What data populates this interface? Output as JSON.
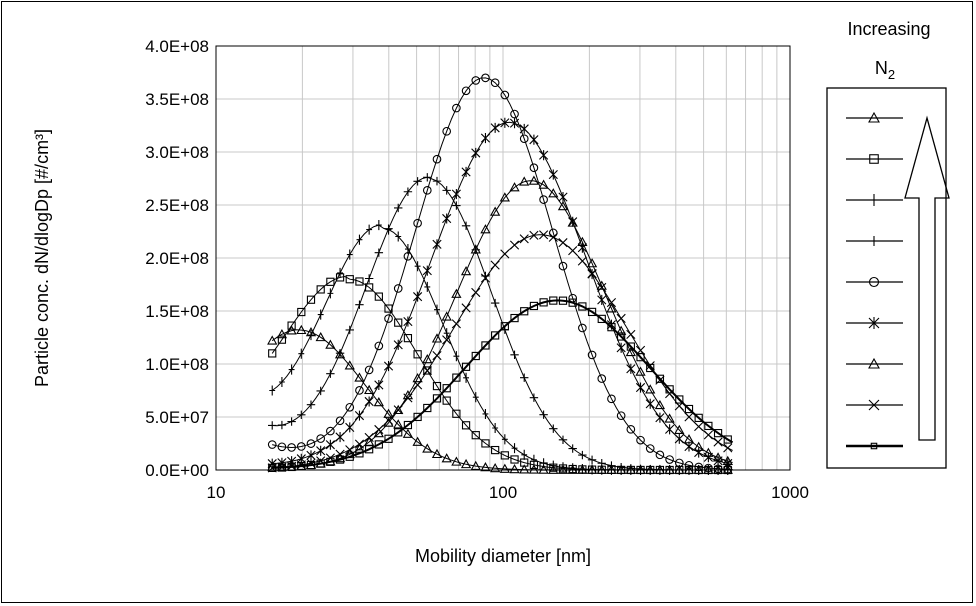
{
  "chart_data": {
    "type": "scatter",
    "xscale": "log",
    "xlim": [
      10,
      1000
    ],
    "ylim": [
      0,
      400000000
    ],
    "xlabel": "Mobility diameter [nm]",
    "ylabel": "Particle conc. dN/dlogDp [#/cm³]",
    "xticks": [
      "10",
      "100",
      "1000"
    ],
    "yticks": [
      "0.0E+00",
      "5.0E+07",
      "1.0E+08",
      "1.5E+08",
      "2.0E+08",
      "2.5E+08",
      "3.0E+08",
      "3.5E+08",
      "4.0E+08"
    ],
    "grid": true,
    "legend": {
      "title_line1": "Increasing",
      "title_line2": "N",
      "title_sub": "2",
      "placement": "right",
      "arrow": "up"
    },
    "x_range_points": [
      15.7,
      631
    ],
    "series": [
      {
        "marker": "triangle",
        "peak_x": 19.5,
        "peak_y": 132000000,
        "start_y": 122000000,
        "width": 0.23
      },
      {
        "marker": "square",
        "peak_x": 29,
        "peak_y": 180000000,
        "start_y": 110000000,
        "width": 0.24
      },
      {
        "marker": "vbar",
        "peak_x": 38,
        "peak_y": 228000000,
        "start_y": 75000000,
        "width": 0.21
      },
      {
        "marker": "plus",
        "peak_x": 55,
        "peak_y": 275000000,
        "start_y": 42000000,
        "width": 0.22
      },
      {
        "marker": "circle",
        "peak_x": 86,
        "peak_y": 370000000,
        "start_y": 24000000,
        "width": 0.24
      },
      {
        "marker": "asterisk",
        "peak_x": 105,
        "peak_y": 328000000,
        "start_y": 6000000,
        "width": 0.27
      },
      {
        "marker": "triangle",
        "peak_x": 125,
        "peak_y": 273000000,
        "start_y": 3000000,
        "width": 0.26
      },
      {
        "marker": "cross",
        "peak_x": 135,
        "peak_y": 222000000,
        "start_y": 2000000,
        "width": 0.3
      },
      {
        "marker": "square-bold",
        "peak_x": 155,
        "peak_y": 160000000,
        "start_y": 2000000,
        "width": 0.32
      }
    ]
  }
}
